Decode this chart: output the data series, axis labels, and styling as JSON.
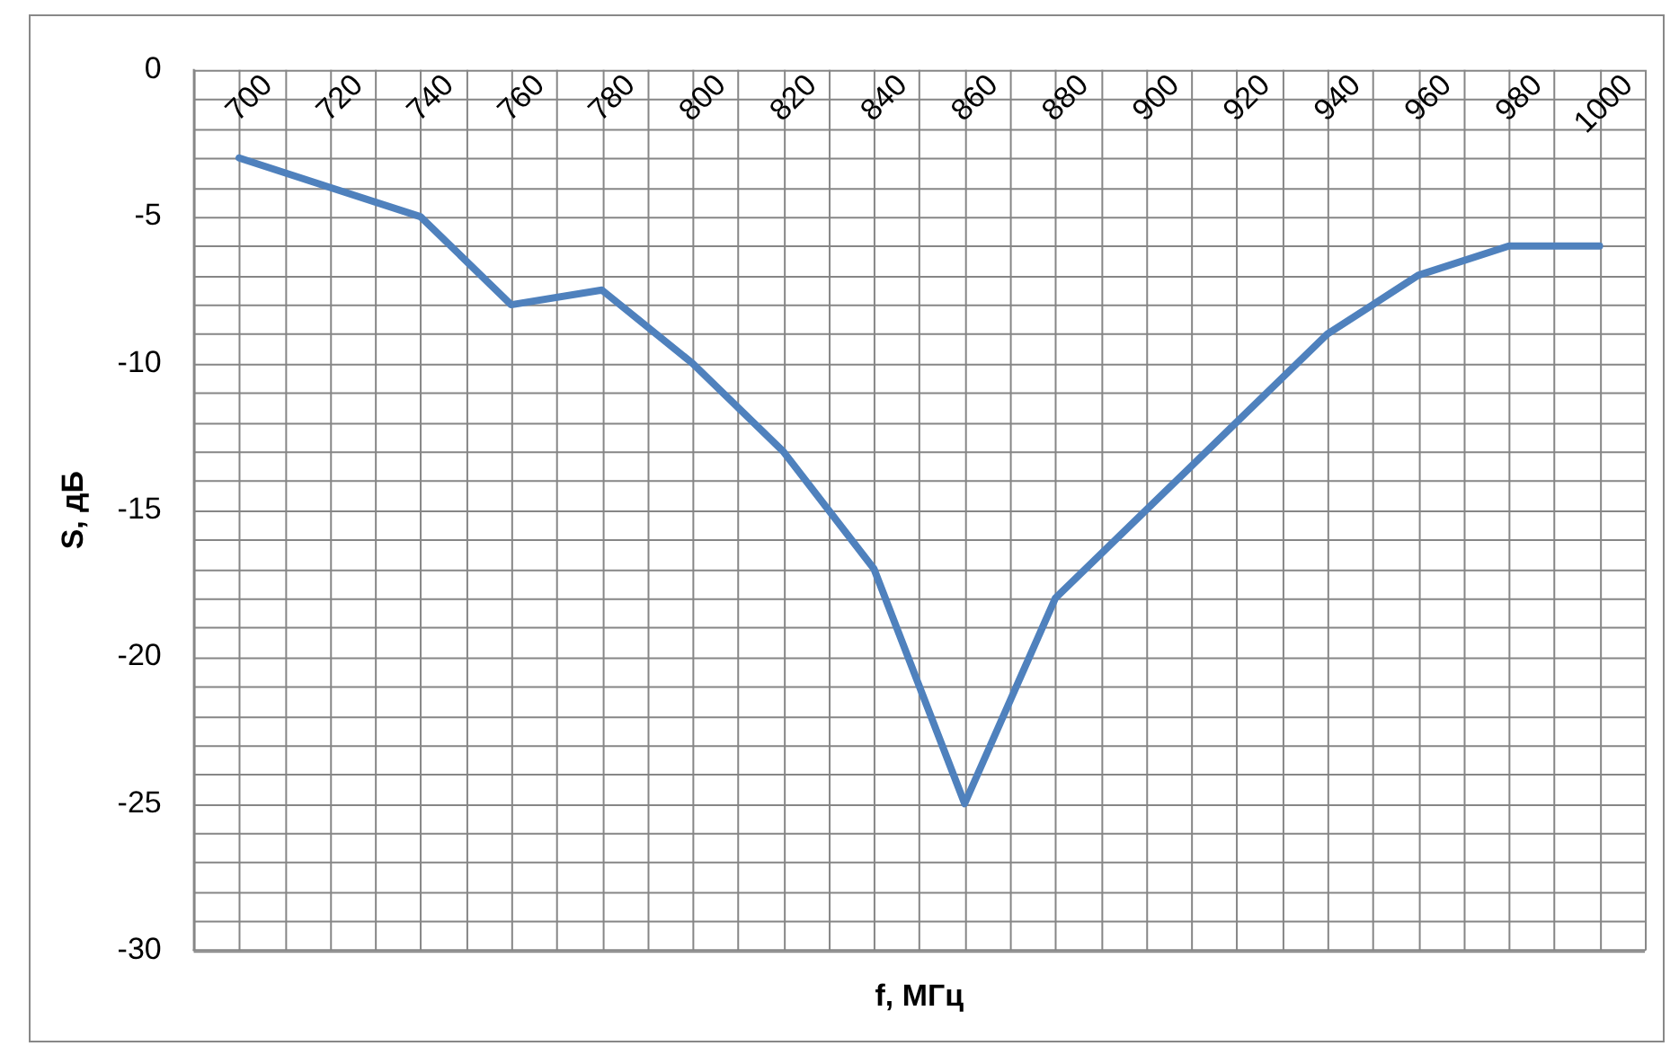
{
  "chart_data": {
    "type": "line",
    "xlabel": "f, МГц",
    "ylabel": "S, дБ",
    "categories": [
      "700",
      "720",
      "740",
      "760",
      "780",
      "800",
      "820",
      "840",
      "860",
      "880",
      "900",
      "920",
      "940",
      "960",
      "980",
      "1000"
    ],
    "series": [
      {
        "color": "#4f81bd",
        "values": [
          -3,
          -4,
          -5,
          -8,
          -7.5,
          -10,
          -13,
          -17,
          -25,
          -18,
          -15,
          -12,
          -9,
          -7,
          -6,
          -6
        ]
      }
    ],
    "ylim": [
      -30,
      0
    ],
    "yticks": [
      -30,
      -25,
      -20,
      -15,
      -10,
      -5,
      0
    ],
    "grid": true,
    "legend": false,
    "marker": "none",
    "line_style": "solid"
  }
}
